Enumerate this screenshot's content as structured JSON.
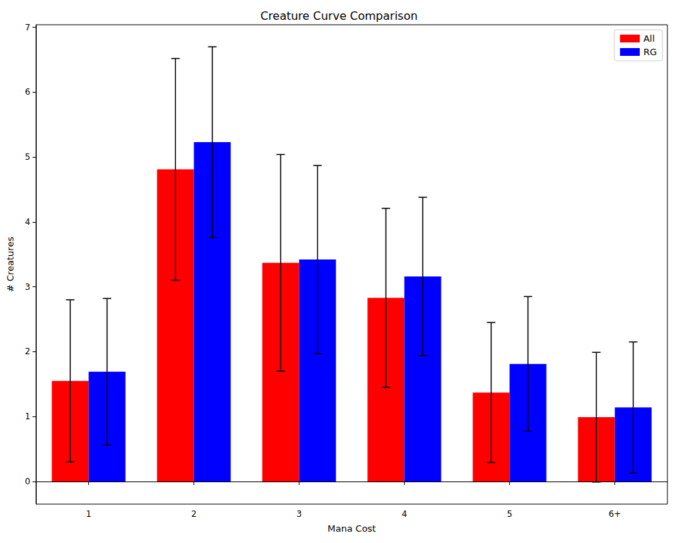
{
  "chart_data": {
    "type": "bar",
    "title": "Creature Curve Comparison",
    "x_label": "Mana Cost",
    "y_label": "# Creatures",
    "categories": [
      "1",
      "2",
      "3",
      "4",
      "5",
      "6+"
    ],
    "series": [
      {
        "name": "All",
        "color": "#ff0000",
        "values": [
          1.55,
          4.81,
          3.37,
          2.83,
          1.37,
          0.99
        ],
        "errors": [
          1.25,
          1.71,
          1.67,
          1.38,
          1.08,
          1.0
        ]
      },
      {
        "name": "RG",
        "color": "#0000ff",
        "values": [
          1.69,
          5.23,
          3.42,
          3.16,
          1.81,
          1.14
        ],
        "errors": [
          1.13,
          1.47,
          1.45,
          1.22,
          1.04,
          1.01
        ]
      }
    ],
    "ylim": [
      -0.35,
      7.04
    ],
    "yticks": [
      0,
      1,
      2,
      3,
      4,
      5,
      6,
      7
    ],
    "legend": "upper right",
    "grid": false
  }
}
